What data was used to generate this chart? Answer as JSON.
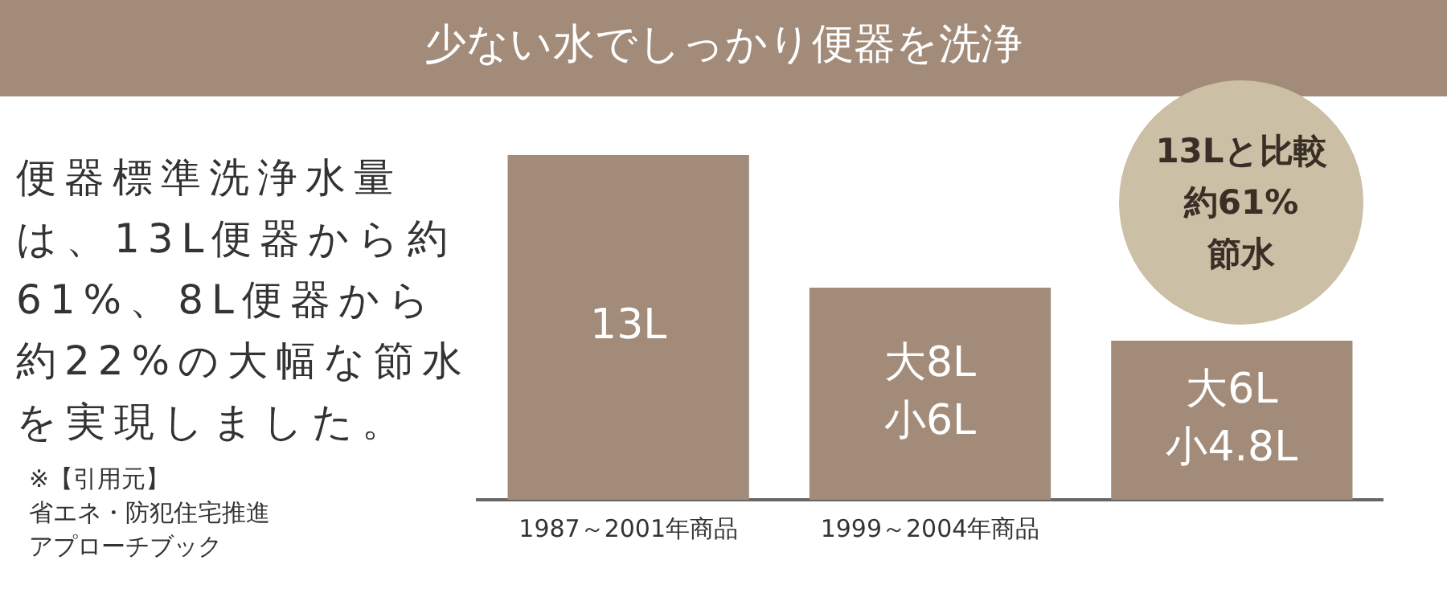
{
  "chart_data": {
    "type": "bar",
    "title": "少ない水でしっかり便器を洗浄",
    "categories": [
      "1987～2001年商品",
      "1999～2004年商品",
      null
    ],
    "values": [
      13,
      8,
      6
    ],
    "value_labels": [
      "13L",
      "大8L\n小6L",
      "大6L\n小4.8L"
    ],
    "color": "#a28b79",
    "tick_labels": "x",
    "grid": false,
    "legend": false,
    "annotations": [
      "便器標準洗浄水量は、13L便器から約61%、8L便器から約22%の大幅な節水を実現しました。",
      "※【引用元】",
      "省エネ・防犯住宅推進",
      "アプローチブック",
      "13Lと比較",
      "約61%",
      "節水"
    ]
  }
}
